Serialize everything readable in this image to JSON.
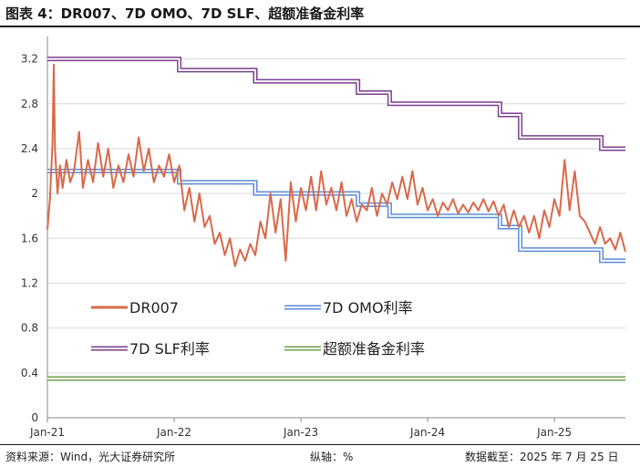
{
  "header": {
    "title": "图表 4：DR007、7D OMO、7D SLF、超额准备金利率"
  },
  "footer": {
    "source": "资料来源：Wind，光大证券研究所",
    "unit": "纵轴：%",
    "date": "数据截至：2025 年 7 月 25 日"
  },
  "chart_data": {
    "type": "line",
    "title": "DR007、7D OMO、7D SLF、超额准备金利率",
    "xlabel": "",
    "ylabel": "%",
    "ylim": [
      0,
      3.4
    ],
    "xlim": [
      "2021-01-01",
      "2025-07-25"
    ],
    "y_ticks": [
      "0",
      "0.4",
      "0.8",
      "1.2",
      "1.6",
      "2",
      "2.4",
      "2.8",
      "3.2"
    ],
    "x_ticks": [
      {
        "label": "Jan-21",
        "t": 2021.0
      },
      {
        "label": "Jan-22",
        "t": 2022.0
      },
      {
        "label": "Jan-23",
        "t": 2023.0
      },
      {
        "label": "Jan-24",
        "t": 2024.0
      },
      {
        "label": "Jan-25",
        "t": 2025.0
      }
    ],
    "grid": "horizontal",
    "legend_position": "lower-middle",
    "series": [
      {
        "name": "DR007",
        "style": "solid",
        "color": "#D9694A",
        "points": [
          [
            2021.0,
            1.68
          ],
          [
            2021.02,
            1.95
          ],
          [
            2021.04,
            2.45
          ],
          [
            2021.05,
            3.15
          ],
          [
            2021.06,
            2.4
          ],
          [
            2021.08,
            2.0
          ],
          [
            2021.1,
            2.25
          ],
          [
            2021.12,
            2.05
          ],
          [
            2021.15,
            2.3
          ],
          [
            2021.18,
            2.1
          ],
          [
            2021.21,
            2.2
          ],
          [
            2021.25,
            2.55
          ],
          [
            2021.28,
            2.05
          ],
          [
            2021.32,
            2.3
          ],
          [
            2021.36,
            2.1
          ],
          [
            2021.4,
            2.45
          ],
          [
            2021.44,
            2.15
          ],
          [
            2021.48,
            2.4
          ],
          [
            2021.52,
            2.05
          ],
          [
            2021.56,
            2.25
          ],
          [
            2021.6,
            2.1
          ],
          [
            2021.64,
            2.35
          ],
          [
            2021.68,
            2.15
          ],
          [
            2021.72,
            2.5
          ],
          [
            2021.76,
            2.2
          ],
          [
            2021.8,
            2.4
          ],
          [
            2021.84,
            2.1
          ],
          [
            2021.88,
            2.25
          ],
          [
            2021.92,
            2.15
          ],
          [
            2021.96,
            2.35
          ],
          [
            2022.0,
            2.1
          ],
          [
            2022.04,
            2.25
          ],
          [
            2022.08,
            1.85
          ],
          [
            2022.12,
            2.05
          ],
          [
            2022.16,
            1.75
          ],
          [
            2022.2,
            2.0
          ],
          [
            2022.24,
            1.7
          ],
          [
            2022.28,
            1.8
          ],
          [
            2022.32,
            1.55
          ],
          [
            2022.36,
            1.65
          ],
          [
            2022.4,
            1.45
          ],
          [
            2022.44,
            1.6
          ],
          [
            2022.48,
            1.35
          ],
          [
            2022.52,
            1.5
          ],
          [
            2022.56,
            1.4
          ],
          [
            2022.6,
            1.55
          ],
          [
            2022.64,
            1.45
          ],
          [
            2022.68,
            1.75
          ],
          [
            2022.72,
            1.6
          ],
          [
            2022.76,
            2.0
          ],
          [
            2022.8,
            1.65
          ],
          [
            2022.84,
            1.95
          ],
          [
            2022.88,
            1.4
          ],
          [
            2022.92,
            2.1
          ],
          [
            2022.96,
            1.75
          ],
          [
            2023.0,
            2.05
          ],
          [
            2023.04,
            1.85
          ],
          [
            2023.08,
            2.15
          ],
          [
            2023.12,
            1.85
          ],
          [
            2023.16,
            2.2
          ],
          [
            2023.2,
            1.9
          ],
          [
            2023.24,
            2.05
          ],
          [
            2023.28,
            1.85
          ],
          [
            2023.32,
            2.1
          ],
          [
            2023.36,
            1.8
          ],
          [
            2023.4,
            1.95
          ],
          [
            2023.44,
            1.75
          ],
          [
            2023.48,
            1.9
          ],
          [
            2023.52,
            1.85
          ],
          [
            2023.56,
            2.05
          ],
          [
            2023.6,
            1.8
          ],
          [
            2023.64,
            2.0
          ],
          [
            2023.68,
            1.9
          ],
          [
            2023.72,
            2.1
          ],
          [
            2023.76,
            1.95
          ],
          [
            2023.8,
            2.15
          ],
          [
            2023.84,
            1.95
          ],
          [
            2023.88,
            2.2
          ],
          [
            2023.92,
            1.9
          ],
          [
            2023.96,
            2.05
          ],
          [
            2024.0,
            1.85
          ],
          [
            2024.04,
            1.95
          ],
          [
            2024.08,
            1.8
          ],
          [
            2024.12,
            1.92
          ],
          [
            2024.16,
            1.85
          ],
          [
            2024.2,
            1.95
          ],
          [
            2024.24,
            1.82
          ],
          [
            2024.28,
            1.9
          ],
          [
            2024.32,
            1.83
          ],
          [
            2024.36,
            1.92
          ],
          [
            2024.4,
            1.85
          ],
          [
            2024.44,
            1.95
          ],
          [
            2024.48,
            1.84
          ],
          [
            2024.52,
            1.93
          ],
          [
            2024.56,
            1.8
          ],
          [
            2024.6,
            1.9
          ],
          [
            2024.64,
            1.7
          ],
          [
            2024.68,
            1.85
          ],
          [
            2024.72,
            1.7
          ],
          [
            2024.76,
            1.8
          ],
          [
            2024.8,
            1.65
          ],
          [
            2024.84,
            1.8
          ],
          [
            2024.88,
            1.6
          ],
          [
            2024.92,
            1.85
          ],
          [
            2024.96,
            1.7
          ],
          [
            2025.0,
            1.95
          ],
          [
            2025.04,
            1.8
          ],
          [
            2025.08,
            2.3
          ],
          [
            2025.12,
            1.85
          ],
          [
            2025.16,
            2.2
          ],
          [
            2025.2,
            1.8
          ],
          [
            2025.24,
            1.75
          ],
          [
            2025.28,
            1.65
          ],
          [
            2025.32,
            1.55
          ],
          [
            2025.36,
            1.7
          ],
          [
            2025.4,
            1.55
          ],
          [
            2025.44,
            1.6
          ],
          [
            2025.48,
            1.5
          ],
          [
            2025.52,
            1.65
          ],
          [
            2025.56,
            1.48
          ]
        ]
      },
      {
        "name": "7D OMO利率",
        "style": "double",
        "color": "#5B8BD6",
        "steps": [
          [
            2021.0,
            2.2
          ],
          [
            2022.04,
            2.1
          ],
          [
            2022.64,
            2.0
          ],
          [
            2023.45,
            1.9
          ],
          [
            2023.7,
            1.8
          ],
          [
            2024.57,
            1.7
          ],
          [
            2024.73,
            1.5
          ],
          [
            2025.37,
            1.4
          ],
          [
            2025.56,
            1.4
          ]
        ]
      },
      {
        "name": "7D SLF利率",
        "style": "double",
        "color": "#7B3F8C",
        "steps": [
          [
            2021.0,
            3.2
          ],
          [
            2022.04,
            3.1
          ],
          [
            2022.64,
            3.0
          ],
          [
            2023.45,
            2.9
          ],
          [
            2023.7,
            2.8
          ],
          [
            2024.57,
            2.7
          ],
          [
            2024.73,
            2.5
          ],
          [
            2025.37,
            2.4
          ],
          [
            2025.56,
            2.4
          ]
        ]
      },
      {
        "name": "超额准备金利率",
        "style": "double",
        "color": "#6FA14E",
        "steps": [
          [
            2021.0,
            0.35
          ],
          [
            2025.56,
            0.35
          ]
        ]
      }
    ]
  }
}
